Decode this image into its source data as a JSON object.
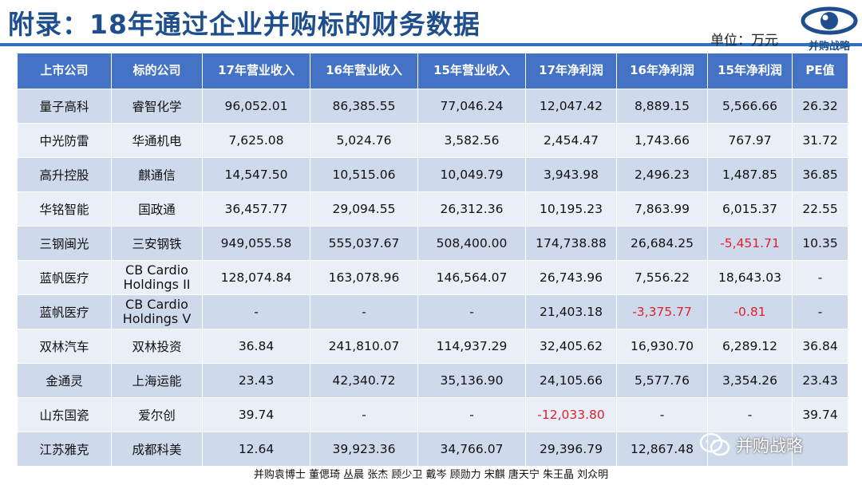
{
  "header": {
    "title": "附录：18年通过企业并购标的财务数据",
    "unit": "单位：万元",
    "logo_text": "并购战略"
  },
  "table": {
    "columns": [
      "上市公司",
      "标的公司",
      "17年营业收入",
      "16年营业收入",
      "15年营业收入",
      "17年净利润",
      "16年净利润",
      "15年净利润",
      "PE值"
    ],
    "rows": [
      [
        "量子高科",
        "睿智化学",
        "96,052.01",
        "86,385.55",
        "77,046.24",
        "12,047.42",
        "8,889.15",
        "5,566.66",
        "26.32"
      ],
      [
        "中光防雷",
        "华通机电",
        "7,625.08",
        "5,024.76",
        "3,582.56",
        "2,454.47",
        "1,743.66",
        "767.97",
        "31.72"
      ],
      [
        "高升控股",
        "麒通信",
        "14,547.50",
        "10,515.06",
        "10,049.79",
        "3,943.98",
        "2,496.23",
        "1,487.85",
        "36.85"
      ],
      [
        "华铭智能",
        "国政通",
        "36,457.77",
        "29,094.55",
        "26,312.36",
        "10,195.23",
        "7,863.99",
        "6,015.37",
        "22.55"
      ],
      [
        "三钢闽光",
        "三安钢铁",
        "949,055.58",
        "555,037.67",
        "508,400.00",
        "174,738.88",
        "26,684.25",
        "-5,451.71",
        "10.35"
      ],
      [
        "蓝帆医疗",
        "CB Cardio Holdings II",
        "128,074.84",
        "163,078.96",
        "146,564.07",
        "26,743.96",
        "7,556.22",
        "18,643.03",
        "-"
      ],
      [
        "蓝帆医疗",
        "CB Cardio Holdings V",
        "-",
        "-",
        "-",
        "21,403.18",
        "-3,375.77",
        "-0.81",
        "-"
      ],
      [
        "双林汽车",
        "双林投资",
        "36.84",
        "241,810.07",
        "114,937.29",
        "32,405.62",
        "16,930.70",
        "6,289.12",
        "36.84"
      ],
      [
        "金通灵",
        "上海运能",
        "23.43",
        "42,340.72",
        "35,136.90",
        "24,105.66",
        "5,577.76",
        "3,354.26",
        "23.43"
      ],
      [
        "山东国瓷",
        "爱尔创",
        "39.74",
        "-",
        "-",
        "-12,033.80",
        "-",
        "-",
        "39.74"
      ],
      [
        "江苏雅克",
        "成都科美",
        "12.64",
        "39,923.36",
        "34,766.07",
        "29,396.79",
        "12,867.48",
        "",
        ""
      ]
    ]
  },
  "footer": {
    "credits": "并购袁博士 董偲琦 丛晨 张杰 顾少卫 戴岑 顾勋力 宋麒 唐天宁 朱王晶 刘众明"
  },
  "watermark": {
    "text": "并购战略",
    "icon": "wechat-icon"
  },
  "colors": {
    "title": "#1e4e8c",
    "header_bg": "#4472c4",
    "row_odd": "#cfd9ec",
    "row_even": "#e9eef7",
    "negative": "#e0202e"
  }
}
